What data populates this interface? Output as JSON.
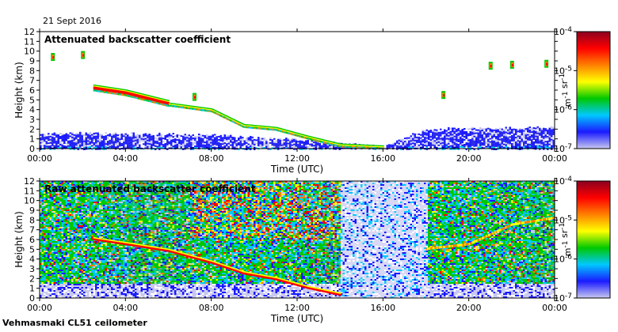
{
  "date_label": "21 Sept 2016",
  "instrument_label": "Vehmasmaki CL51 ceilometer",
  "colors": {
    "colormap": [
      "#c8c8f0",
      "#1a1aff",
      "#00c8ff",
      "#00c800",
      "#ffff00",
      "#ff8000",
      "#ff0000",
      "#8b0020"
    ]
  },
  "chart_data": [
    {
      "type": "heatmap",
      "title": "Attenuated backscatter coefficient",
      "xlabel": "Time (UTC)",
      "ylabel": "Height (km)",
      "x_ticks": [
        "00:00",
        "04:00",
        "08:00",
        "12:00",
        "16:00",
        "20:00",
        "00:00"
      ],
      "y_ticks": [
        "0",
        "1",
        "2",
        "3",
        "4",
        "5",
        "6",
        "7",
        "8",
        "9",
        "10",
        "11",
        "12"
      ],
      "xlim_hours": [
        0,
        24
      ],
      "ylim": [
        0,
        12
      ],
      "colorbar": {
        "label": "m-1 sr-1",
        "ticks": [
          "10-7",
          "10-6",
          "10-5",
          "10-4"
        ],
        "scale": "log",
        "range": [
          -7,
          -4
        ]
      },
      "boundary_layer_top_km": [
        [
          0,
          1.6
        ],
        [
          2,
          1.6
        ],
        [
          6,
          1.5
        ],
        [
          9,
          1.3
        ],
        [
          12,
          0.9
        ],
        [
          14,
          0.5
        ],
        [
          16,
          0.3
        ],
        [
          18,
          2.0
        ],
        [
          20,
          2.1
        ],
        [
          22,
          2.1
        ],
        [
          24,
          2.2
        ]
      ],
      "cloud_layer_km": [
        [
          2.5,
          6.0
        ],
        [
          4,
          5.5
        ],
        [
          6,
          4.4
        ],
        [
          8,
          3.8
        ],
        [
          9.5,
          2.2
        ],
        [
          11,
          1.9
        ],
        [
          12.5,
          1.0
        ],
        [
          14,
          0.2
        ],
        [
          16,
          0.0
        ]
      ],
      "high_cloud_points": [
        [
          0.6,
          9.4
        ],
        [
          2,
          9.6
        ],
        [
          7.2,
          5.3
        ],
        [
          18.8,
          5.5
        ],
        [
          21,
          8.5
        ],
        [
          22,
          8.6
        ],
        [
          23.6,
          8.7
        ]
      ]
    },
    {
      "type": "heatmap",
      "title": "Raw attenuated backscatter coefficient",
      "xlabel": "Time (UTC)",
      "ylabel": "Height (km)",
      "x_ticks": [
        "00:00",
        "04:00",
        "08:00",
        "12:00",
        "16:00",
        "20:00",
        "00:00"
      ],
      "y_ticks": [
        "0",
        "1",
        "2",
        "3",
        "4",
        "5",
        "6",
        "7",
        "8",
        "9",
        "10",
        "11",
        "12"
      ],
      "xlim_hours": [
        0,
        24
      ],
      "ylim": [
        0,
        12
      ],
      "colorbar": {
        "label": "m-1 sr-1",
        "ticks": [
          "10-7",
          "10-6",
          "10-5",
          "10-4"
        ],
        "scale": "log",
        "range": [
          -7,
          -4
        ]
      },
      "noisy_gap_hours": [
        14,
        18
      ],
      "cloud_layer_km": [
        [
          2.5,
          6.0
        ],
        [
          4,
          5.5
        ],
        [
          6,
          4.8
        ],
        [
          8,
          3.6
        ],
        [
          9.5,
          2.5
        ],
        [
          11,
          1.9
        ],
        [
          12.5,
          1.0
        ],
        [
          14,
          0.3
        ]
      ],
      "rising_layer_km": [
        [
          18,
          5.0
        ],
        [
          20,
          5.5
        ],
        [
          21,
          6.5
        ],
        [
          22,
          7.5
        ],
        [
          24,
          8.2
        ]
      ]
    }
  ]
}
